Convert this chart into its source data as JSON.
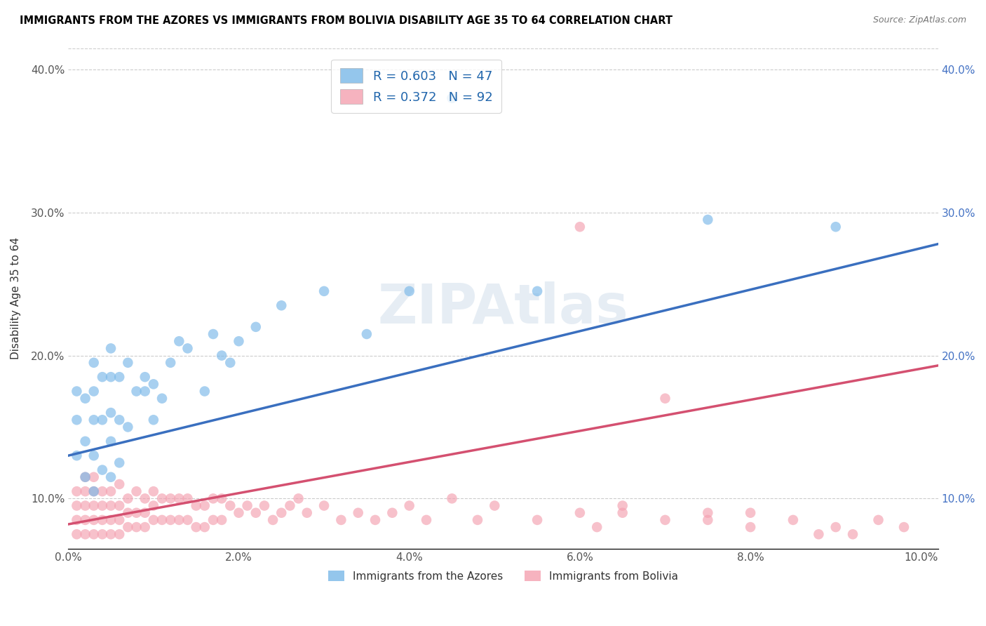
{
  "title": "IMMIGRANTS FROM THE AZORES VS IMMIGRANTS FROM BOLIVIA DISABILITY AGE 35 TO 64 CORRELATION CHART",
  "source": "Source: ZipAtlas.com",
  "ylabel": "Disability Age 35 to 64",
  "xlim": [
    0.0,
    0.102
  ],
  "ylim": [
    0.065,
    0.415
  ],
  "xticks": [
    0.0,
    0.02,
    0.04,
    0.06,
    0.08,
    0.1
  ],
  "yticks": [
    0.1,
    0.2,
    0.3,
    0.4
  ],
  "xticklabels": [
    "0.0%",
    "2.0%",
    "4.0%",
    "6.0%",
    "8.0%",
    "10.0%"
  ],
  "yticklabels": [
    "10.0%",
    "20.0%",
    "30.0%",
    "40.0%"
  ],
  "azores_color": "#7ab8e8",
  "bolivia_color": "#f4a0b0",
  "azores_line_color": "#3a6fbf",
  "bolivia_line_color": "#d45070",
  "azores_R": 0.603,
  "azores_N": 47,
  "bolivia_R": 0.372,
  "bolivia_N": 92,
  "legend_label_azores": "Immigrants from the Azores",
  "legend_label_bolivia": "Immigrants from Bolivia",
  "azores_line_x0": 0.0,
  "azores_line_y0": 0.13,
  "azores_line_x1": 0.102,
  "azores_line_y1": 0.278,
  "bolivia_line_x0": 0.0,
  "bolivia_line_y0": 0.082,
  "bolivia_line_x1": 0.102,
  "bolivia_line_y1": 0.193,
  "azores_x": [
    0.001,
    0.001,
    0.001,
    0.002,
    0.002,
    0.002,
    0.003,
    0.003,
    0.003,
    0.003,
    0.003,
    0.004,
    0.004,
    0.004,
    0.005,
    0.005,
    0.005,
    0.005,
    0.005,
    0.006,
    0.006,
    0.006,
    0.007,
    0.007,
    0.008,
    0.009,
    0.009,
    0.01,
    0.01,
    0.011,
    0.012,
    0.013,
    0.014,
    0.016,
    0.017,
    0.018,
    0.019,
    0.02,
    0.022,
    0.025,
    0.03,
    0.035,
    0.04,
    0.045,
    0.055,
    0.075,
    0.09
  ],
  "azores_y": [
    0.13,
    0.155,
    0.175,
    0.115,
    0.14,
    0.17,
    0.105,
    0.13,
    0.155,
    0.175,
    0.195,
    0.12,
    0.155,
    0.185,
    0.115,
    0.14,
    0.16,
    0.185,
    0.205,
    0.125,
    0.155,
    0.185,
    0.15,
    0.195,
    0.175,
    0.185,
    0.175,
    0.155,
    0.18,
    0.17,
    0.195,
    0.21,
    0.205,
    0.175,
    0.215,
    0.2,
    0.195,
    0.21,
    0.22,
    0.235,
    0.245,
    0.215,
    0.245,
    0.38,
    0.245,
    0.295,
    0.29
  ],
  "bolivia_x": [
    0.001,
    0.001,
    0.001,
    0.001,
    0.002,
    0.002,
    0.002,
    0.002,
    0.002,
    0.003,
    0.003,
    0.003,
    0.003,
    0.003,
    0.004,
    0.004,
    0.004,
    0.004,
    0.005,
    0.005,
    0.005,
    0.005,
    0.006,
    0.006,
    0.006,
    0.006,
    0.007,
    0.007,
    0.007,
    0.008,
    0.008,
    0.008,
    0.009,
    0.009,
    0.009,
    0.01,
    0.01,
    0.01,
    0.011,
    0.011,
    0.012,
    0.012,
    0.013,
    0.013,
    0.014,
    0.014,
    0.015,
    0.015,
    0.016,
    0.016,
    0.017,
    0.017,
    0.018,
    0.018,
    0.019,
    0.02,
    0.021,
    0.022,
    0.023,
    0.024,
    0.025,
    0.026,
    0.027,
    0.028,
    0.03,
    0.032,
    0.034,
    0.036,
    0.038,
    0.04,
    0.042,
    0.045,
    0.048,
    0.05,
    0.055,
    0.06,
    0.065,
    0.07,
    0.075,
    0.08,
    0.06,
    0.062,
    0.065,
    0.07,
    0.075,
    0.08,
    0.085,
    0.088,
    0.09,
    0.092,
    0.095,
    0.098
  ],
  "bolivia_y": [
    0.075,
    0.085,
    0.095,
    0.105,
    0.075,
    0.085,
    0.095,
    0.105,
    0.115,
    0.075,
    0.085,
    0.095,
    0.105,
    0.115,
    0.075,
    0.085,
    0.095,
    0.105,
    0.075,
    0.085,
    0.095,
    0.105,
    0.075,
    0.085,
    0.095,
    0.11,
    0.08,
    0.09,
    0.1,
    0.08,
    0.09,
    0.105,
    0.08,
    0.09,
    0.1,
    0.085,
    0.095,
    0.105,
    0.085,
    0.1,
    0.085,
    0.1,
    0.085,
    0.1,
    0.085,
    0.1,
    0.08,
    0.095,
    0.08,
    0.095,
    0.085,
    0.1,
    0.085,
    0.1,
    0.095,
    0.09,
    0.095,
    0.09,
    0.095,
    0.085,
    0.09,
    0.095,
    0.1,
    0.09,
    0.095,
    0.085,
    0.09,
    0.085,
    0.09,
    0.095,
    0.085,
    0.1,
    0.085,
    0.095,
    0.085,
    0.09,
    0.095,
    0.17,
    0.085,
    0.09,
    0.29,
    0.08,
    0.09,
    0.085,
    0.09,
    0.08,
    0.085,
    0.075,
    0.08,
    0.075,
    0.085,
    0.08
  ]
}
